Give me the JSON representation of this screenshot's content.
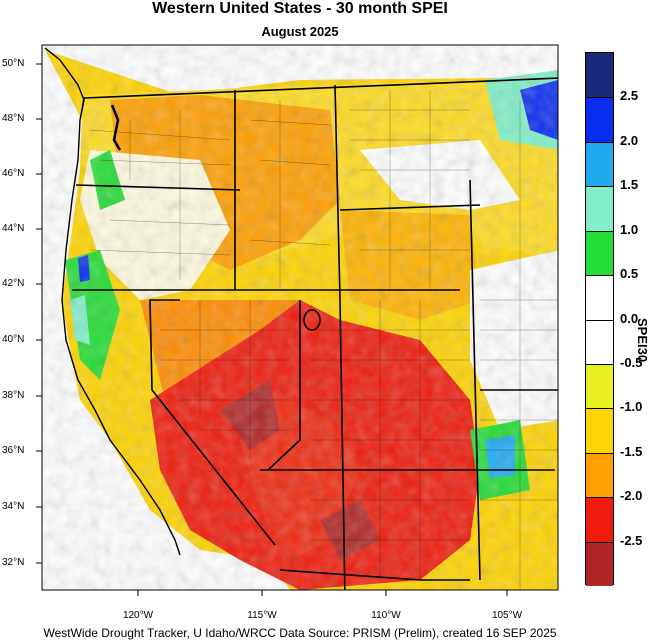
{
  "header": {
    "title": "Western United States - 30 month SPEI",
    "subtitle": "August 2025"
  },
  "map": {
    "latitude_labels": [
      "50°N",
      "48°N",
      "46°N",
      "44°N",
      "42°N",
      "40°N",
      "38°N",
      "36°N",
      "34°N",
      "32°N"
    ],
    "longitude_labels": [
      "120°W",
      "115°W",
      "110°W",
      "105°W"
    ],
    "dominant_condition_southwest": "severe drought (below -2.0)",
    "wet_areas": [
      "northern Rockies/Montana east",
      "Pacific Northwest coast",
      "eastern Colorado/New Mexico"
    ]
  },
  "colorbar": {
    "title": "SPEI30",
    "tick_labels": [
      "2.5",
      "2.0",
      "1.5",
      "1.0",
      "0.5",
      "0.0",
      "-0.5",
      "-1.0",
      "-1.5",
      "-2.0",
      "-2.5"
    ],
    "colors": [
      "#1b2a78",
      "#0a2ef0",
      "#1faaf0",
      "#7ff0c8",
      "#22dd33",
      "#ffffff",
      "#ffffff",
      "#e6f020",
      "#ffd400",
      "#ff9f00",
      "#ee1c0c",
      "#b02626"
    ]
  },
  "footer": {
    "credit": "WestWide Drought Tracker, U Idaho/WRCC Data Source: PRISM (Prelim), created 16 SEP 2025"
  }
}
